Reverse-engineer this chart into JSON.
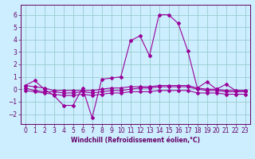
{
  "title": "",
  "xlabel": "Windchill (Refroidissement éolien,°C)",
  "bg_color": "#cceeff",
  "line_color": "#990099",
  "grid_color": "#99cccc",
  "x_ticks": [
    0,
    1,
    2,
    3,
    4,
    5,
    6,
    7,
    8,
    9,
    10,
    11,
    12,
    13,
    14,
    15,
    16,
    17,
    18,
    19,
    20,
    21,
    22,
    23
  ],
  "y_ticks": [
    -2,
    -1,
    0,
    1,
    2,
    3,
    4,
    5,
    6
  ],
  "ylim": [
    -2.8,
    6.8
  ],
  "xlim": [
    -0.5,
    23.5
  ],
  "series": [
    {
      "x": [
        0,
        1,
        2,
        3,
        4,
        5,
        6,
        7,
        8,
        9,
        10,
        11,
        12,
        13,
        14,
        15,
        16,
        17,
        18,
        19,
        20,
        21,
        22,
        23
      ],
      "y": [
        0.3,
        0.7,
        0.0,
        -0.5,
        -1.3,
        -1.3,
        0.1,
        -2.3,
        0.8,
        0.9,
        1.0,
        3.9,
        4.3,
        2.7,
        6.0,
        6.0,
        5.3,
        3.1,
        0.1,
        0.6,
        0.0,
        0.4,
        -0.1,
        -0.1
      ]
    },
    {
      "x": [
        0,
        1,
        2,
        3,
        4,
        5,
        6,
        7,
        8,
        9,
        10,
        11,
        12,
        13,
        14,
        15,
        16,
        17,
        18,
        19,
        20,
        21,
        22,
        23
      ],
      "y": [
        0.3,
        0.2,
        0.1,
        -0.1,
        -0.1,
        -0.1,
        -0.1,
        -0.1,
        0.0,
        0.1,
        0.1,
        0.2,
        0.2,
        0.2,
        0.3,
        0.3,
        0.3,
        0.3,
        0.1,
        0.0,
        0.0,
        -0.1,
        -0.1,
        -0.1
      ]
    },
    {
      "x": [
        0,
        1,
        2,
        3,
        4,
        5,
        6,
        7,
        8,
        9,
        10,
        11,
        12,
        13,
        14,
        15,
        16,
        17,
        18,
        19,
        20,
        21,
        22,
        23
      ],
      "y": [
        0.1,
        -0.1,
        -0.2,
        -0.2,
        -0.3,
        -0.3,
        -0.2,
        -0.3,
        -0.2,
        -0.1,
        -0.1,
        0.0,
        0.1,
        0.1,
        0.2,
        0.2,
        0.2,
        0.2,
        0.0,
        -0.1,
        -0.1,
        -0.2,
        -0.2,
        -0.2
      ]
    },
    {
      "x": [
        0,
        1,
        2,
        3,
        4,
        5,
        6,
        7,
        8,
        9,
        10,
        11,
        12,
        13,
        14,
        15,
        16,
        17,
        18,
        19,
        20,
        21,
        22,
        23
      ],
      "y": [
        -0.1,
        -0.2,
        -0.3,
        -0.4,
        -0.5,
        -0.5,
        -0.4,
        -0.5,
        -0.4,
        -0.3,
        -0.3,
        -0.2,
        -0.2,
        -0.2,
        -0.1,
        -0.1,
        -0.1,
        -0.1,
        -0.3,
        -0.3,
        -0.3,
        -0.4,
        -0.4,
        -0.4
      ]
    }
  ],
  "tick_fontsize": 5.5,
  "xlabel_fontsize": 5.5,
  "tick_color": "#660066",
  "spine_color": "#660066"
}
